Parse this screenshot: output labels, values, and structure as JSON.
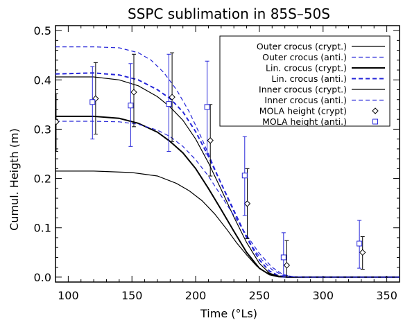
{
  "chart_data": {
    "type": "line",
    "title": "SSPC sublimation in 85S–50S",
    "xlabel": "Time (°Ls)",
    "ylabel": "Cumul. Heigth (m)",
    "xlim": [
      90,
      360
    ],
    "ylim": [
      -0.01,
      0.51
    ],
    "xticks": [
      100,
      150,
      200,
      250,
      300,
      350
    ],
    "yticks": [
      0.0,
      0.1,
      0.2,
      0.3,
      0.4,
      0.5
    ],
    "ytick_labels": [
      "0.0",
      "0.1",
      "0.2",
      "0.3",
      "0.4",
      "0.5"
    ],
    "grid": false,
    "legend_position": "top-right",
    "colors": {
      "black": "#000000",
      "blue": "#2424d8"
    },
    "series": [
      {
        "name": "Outer crocus (crypt.)",
        "color": "#000000",
        "style": "solid",
        "width": 1.2,
        "x": [
          90,
          120,
          150,
          170,
          185,
          195,
          205,
          215,
          225,
          232,
          240,
          248,
          255,
          262,
          268,
          275,
          285,
          300,
          330,
          360
        ],
        "y": [
          0.215,
          0.215,
          0.212,
          0.205,
          0.19,
          0.175,
          0.155,
          0.128,
          0.095,
          0.07,
          0.045,
          0.022,
          0.01,
          0.004,
          0.001,
          0.0,
          0.0,
          0.0,
          0.0,
          0.0
        ]
      },
      {
        "name": "Outer crocus (anti.)",
        "color": "#2424d8",
        "style": "dashed",
        "width": 1.2,
        "x": [
          90,
          120,
          140,
          155,
          165,
          175,
          185,
          195,
          205,
          215,
          225,
          235,
          245,
          252,
          260,
          268,
          280,
          300,
          330,
          360
        ],
        "y": [
          0.467,
          0.467,
          0.465,
          0.455,
          0.44,
          0.415,
          0.38,
          0.335,
          0.28,
          0.22,
          0.16,
          0.105,
          0.06,
          0.035,
          0.015,
          0.004,
          0.0,
          0.0,
          0.0,
          0.0
        ]
      },
      {
        "name": "Lin. crocus (crypt.)",
        "color": "#000000",
        "style": "solid",
        "width": 2,
        "x": [
          90,
          120,
          140,
          155,
          170,
          180,
          190,
          200,
          210,
          220,
          230,
          240,
          250,
          258,
          265,
          272,
          285,
          300,
          330,
          360
        ],
        "y": [
          0.326,
          0.326,
          0.322,
          0.312,
          0.294,
          0.275,
          0.252,
          0.22,
          0.18,
          0.137,
          0.093,
          0.05,
          0.018,
          0.005,
          0.001,
          0.0,
          0.0,
          0.0,
          0.0,
          0.0
        ]
      },
      {
        "name": "Lin. crocus (anti.)",
        "color": "#2424d8",
        "style": "dashed",
        "width": 2,
        "x": [
          90,
          120,
          140,
          155,
          170,
          180,
          190,
          200,
          210,
          220,
          230,
          240,
          250,
          258,
          265,
          272,
          285,
          300,
          330,
          360
        ],
        "y": [
          0.412,
          0.414,
          0.41,
          0.4,
          0.38,
          0.362,
          0.335,
          0.295,
          0.245,
          0.19,
          0.135,
          0.08,
          0.035,
          0.012,
          0.003,
          0.0,
          0.0,
          0.0,
          0.0,
          0.0
        ]
      },
      {
        "name": "Inner crocus (crypt.)",
        "color": "#000000",
        "style": "solid",
        "width": 1.2,
        "x": [
          90,
          120,
          140,
          155,
          170,
          180,
          190,
          200,
          210,
          220,
          230,
          240,
          250,
          258,
          265,
          272,
          285,
          300,
          330,
          360
        ],
        "y": [
          0.406,
          0.406,
          0.4,
          0.388,
          0.366,
          0.345,
          0.318,
          0.28,
          0.232,
          0.178,
          0.122,
          0.07,
          0.028,
          0.008,
          0.002,
          0.0,
          0.0,
          0.0,
          0.0,
          0.0
        ]
      },
      {
        "name": "Inner crocus (anti.)",
        "color": "#2424d8",
        "style": "dashed",
        "width": 1.2,
        "x": [
          90,
          120,
          140,
          155,
          170,
          180,
          190,
          200,
          210,
          220,
          230,
          240,
          250,
          260,
          268,
          275,
          285,
          300,
          330,
          360
        ],
        "y": [
          0.316,
          0.316,
          0.315,
          0.31,
          0.298,
          0.285,
          0.265,
          0.238,
          0.205,
          0.165,
          0.125,
          0.085,
          0.048,
          0.02,
          0.006,
          0.001,
          0.0,
          0.0,
          0.0,
          0.0
        ]
      }
    ],
    "points": [
      {
        "name": "MOLA height (crypt)",
        "marker": "diamond",
        "color": "#000000",
        "x": [
          90.5,
          121.5,
          151.5,
          181.5,
          211.5,
          240.5,
          271.5,
          331.0
        ],
        "y": [
          0.315,
          0.362,
          0.375,
          0.365,
          0.277,
          0.149,
          0.024,
          0.05
        ],
        "err_low": [
          0.255,
          0.29,
          0.305,
          0.275,
          0.205,
          0.078,
          0.0,
          0.016
        ],
        "err_high": [
          0.372,
          0.435,
          0.452,
          0.455,
          0.35,
          0.22,
          0.074,
          0.082
        ]
      },
      {
        "name": "MOLA height (anti.)",
        "marker": "square",
        "color": "#2424d8",
        "x": [
          119.0,
          149.0,
          179.0,
          209.0,
          238.5,
          269.0,
          328.5
        ],
        "y": [
          0.355,
          0.348,
          0.351,
          0.345,
          0.206,
          0.04,
          0.068
        ],
        "err_low": [
          0.28,
          0.265,
          0.255,
          0.25,
          0.125,
          0.0,
          0.018
        ],
        "err_high": [
          0.427,
          0.433,
          0.452,
          0.438,
          0.285,
          0.09,
          0.115
        ]
      }
    ]
  }
}
